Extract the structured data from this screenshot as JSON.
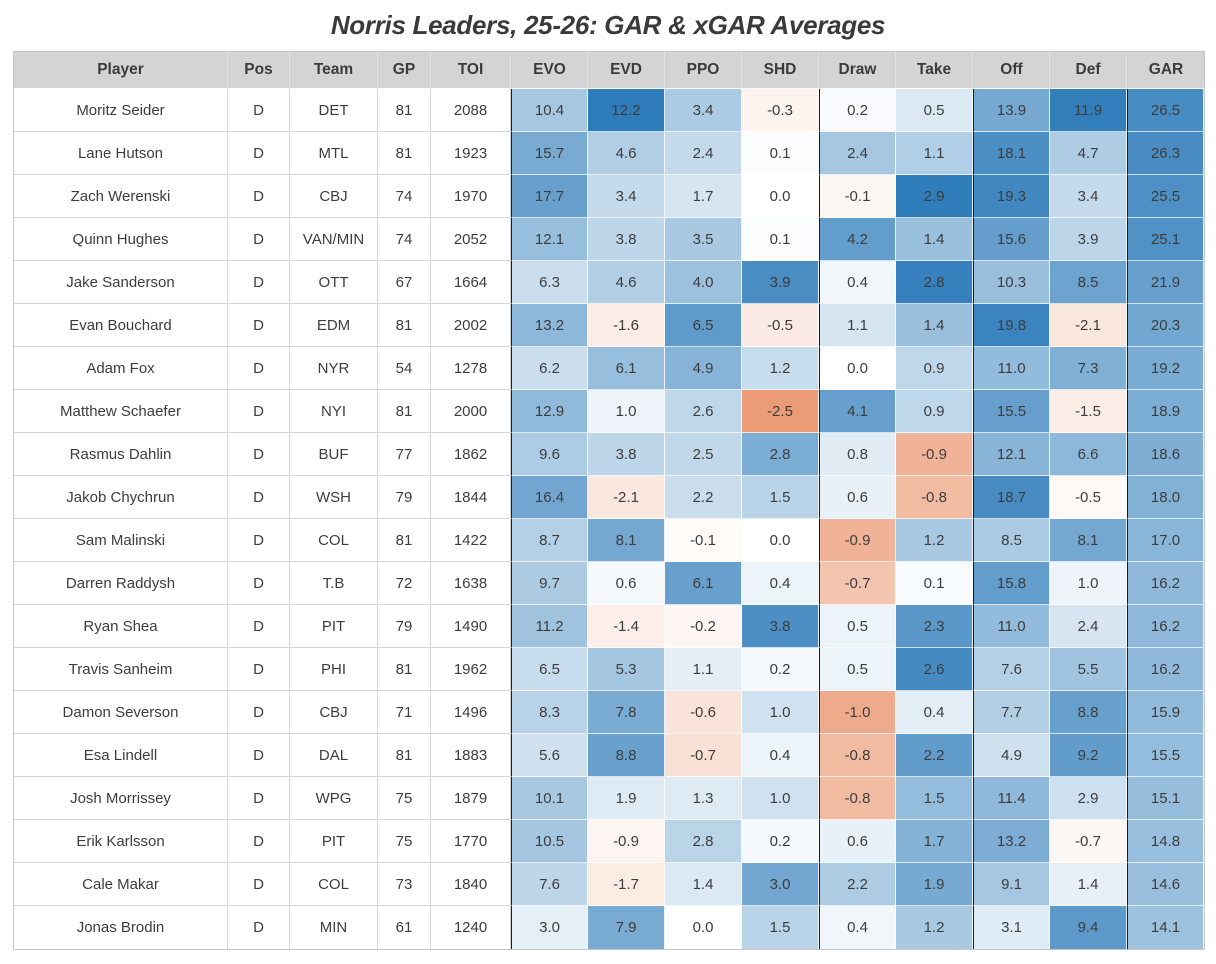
{
  "title": "Norris Leaders, 25-26: GAR & xGAR Averages",
  "chart_data": {
    "type": "table",
    "columns": [
      "Player",
      "Pos",
      "Team",
      "GP",
      "TOI",
      "EVO",
      "EVD",
      "PPO",
      "SHD",
      "Draw",
      "Take",
      "Off",
      "Def",
      "GAR"
    ],
    "rows": [
      [
        "Moritz Seider",
        "D",
        "DET",
        81,
        2088,
        10.4,
        12.2,
        3.4,
        -0.3,
        0.2,
        0.5,
        13.9,
        11.9,
        26.5
      ],
      [
        "Lane Hutson",
        "D",
        "MTL",
        81,
        1923,
        15.7,
        4.6,
        2.4,
        0.1,
        2.4,
        1.1,
        18.1,
        4.7,
        26.3
      ],
      [
        "Zach Werenski",
        "D",
        "CBJ",
        74,
        1970,
        17.7,
        3.4,
        1.7,
        0.0,
        -0.1,
        2.9,
        19.3,
        3.4,
        25.5
      ],
      [
        "Quinn Hughes",
        "D",
        "VAN/MIN",
        74,
        2052,
        12.1,
        3.8,
        3.5,
        0.1,
        4.2,
        1.4,
        15.6,
        3.9,
        25.1
      ],
      [
        "Jake Sanderson",
        "D",
        "OTT",
        67,
        1664,
        6.3,
        4.6,
        4.0,
        3.9,
        0.4,
        2.8,
        10.3,
        8.5,
        21.9
      ],
      [
        "Evan Bouchard",
        "D",
        "EDM",
        81,
        2002,
        13.2,
        -1.6,
        6.5,
        -0.5,
        1.1,
        1.4,
        19.8,
        -2.1,
        20.3
      ],
      [
        "Adam Fox",
        "D",
        "NYR",
        54,
        1278,
        6.2,
        6.1,
        4.9,
        1.2,
        0.0,
        0.9,
        11.0,
        7.3,
        19.2
      ],
      [
        "Matthew Schaefer",
        "D",
        "NYI",
        81,
        2000,
        12.9,
        1.0,
        2.6,
        -2.5,
        4.1,
        0.9,
        15.5,
        -1.5,
        18.9
      ],
      [
        "Rasmus Dahlin",
        "D",
        "BUF",
        77,
        1862,
        9.6,
        3.8,
        2.5,
        2.8,
        0.8,
        -0.9,
        12.1,
        6.6,
        18.6
      ],
      [
        "Jakob Chychrun",
        "D",
        "WSH",
        79,
        1844,
        16.4,
        -2.1,
        2.2,
        1.5,
        0.6,
        -0.8,
        18.7,
        -0.5,
        18.0
      ],
      [
        "Sam Malinski",
        "D",
        "COL",
        81,
        1422,
        8.7,
        8.1,
        -0.1,
        0.0,
        -0.9,
        1.2,
        8.5,
        8.1,
        17.0
      ],
      [
        "Darren Raddysh",
        "D",
        "T.B",
        72,
        1638,
        9.7,
        0.6,
        6.1,
        0.4,
        -0.7,
        0.1,
        15.8,
        1.0,
        16.2
      ],
      [
        "Ryan Shea",
        "D",
        "PIT",
        79,
        1490,
        11.2,
        -1.4,
        -0.2,
        3.8,
        0.5,
        2.3,
        11.0,
        2.4,
        16.2
      ],
      [
        "Travis Sanheim",
        "D",
        "PHI",
        81,
        1962,
        6.5,
        5.3,
        1.1,
        0.2,
        0.5,
        2.6,
        7.6,
        5.5,
        16.2
      ],
      [
        "Damon Severson",
        "D",
        "CBJ",
        71,
        1496,
        8.3,
        7.8,
        -0.6,
        1.0,
        -1.0,
        0.4,
        7.7,
        8.8,
        15.9
      ],
      [
        "Esa Lindell",
        "D",
        "DAL",
        81,
        1883,
        5.6,
        8.8,
        -0.7,
        0.4,
        -0.8,
        2.2,
        4.9,
        9.2,
        15.5
      ],
      [
        "Josh Morrissey",
        "D",
        "WPG",
        75,
        1879,
        10.1,
        1.9,
        1.3,
        1.0,
        -0.8,
        1.5,
        11.4,
        2.9,
        15.1
      ],
      [
        "Erik Karlsson",
        "D",
        "PIT",
        75,
        1770,
        10.5,
        -0.9,
        2.8,
        0.2,
        0.6,
        1.7,
        13.2,
        -0.7,
        14.8
      ],
      [
        "Cale Makar",
        "D",
        "COL",
        73,
        1840,
        7.6,
        -1.7,
        1.4,
        3.0,
        2.2,
        1.9,
        9.1,
        1.4,
        14.6
      ],
      [
        "Jonas Brodin",
        "D",
        "MIN",
        61,
        1240,
        3.0,
        7.9,
        0.0,
        1.5,
        0.4,
        1.2,
        3.1,
        9.4,
        14.1
      ]
    ]
  },
  "heatmap": {
    "positive_color": "#2878b8",
    "negative_color": "#e2703a",
    "neutral_color": "#ffffff",
    "header_background": "#d4d4d4",
    "group_separator_color": "#1b1b1b",
    "stat_columns_start": 5,
    "group_separator_before": [
      "EVO",
      "Draw",
      "Off",
      "GAR"
    ],
    "column_scales": {
      "EVO": {
        "pos": 25.0,
        "neg": 25.0
      },
      "EVD": {
        "pos": 12.6,
        "neg": 12.6
      },
      "PPO": {
        "pos": 8.7,
        "neg": 3.2
      },
      "SHD": {
        "pos": 4.6,
        "neg": 3.6
      },
      "Draw": {
        "pos": 5.8,
        "neg": 1.7
      },
      "Take": {
        "pos": 3.0,
        "neg": 1.7
      },
      "Off": {
        "pos": 21.8,
        "neg": 21.8
      },
      "Def": {
        "pos": 12.5,
        "neg": 12.5
      },
      "GAR": {
        "pos": 31.0,
        "neg": 31.0
      }
    }
  }
}
